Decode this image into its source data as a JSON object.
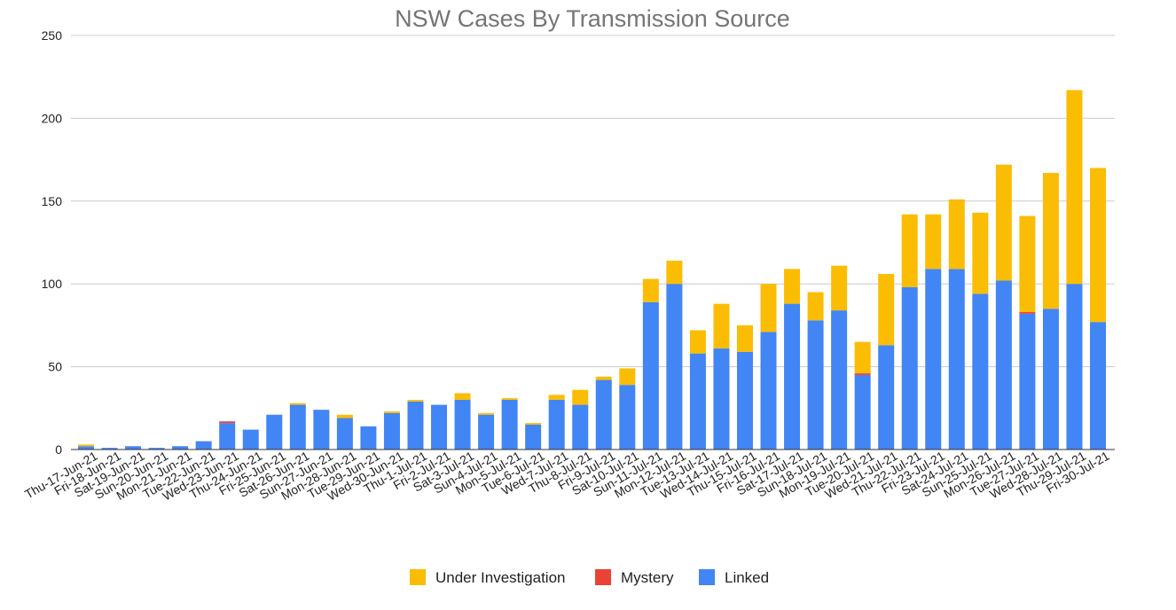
{
  "chart_data": {
    "type": "bar",
    "stacked": true,
    "title": "NSW Cases By Transmission Source",
    "xlabel": "",
    "ylabel": "",
    "ylim": [
      0,
      250
    ],
    "yticks": [
      0,
      50,
      100,
      150,
      200,
      250
    ],
    "grid": true,
    "legend_position": "bottom",
    "categories": [
      "Thu-17-Jun-21",
      "Fri-18-Jun-21",
      "Sat-19-Jun-21",
      "Sun-20-Jun-21",
      "Mon-21-Jun-21",
      "Tue-22-Jun-21",
      "Wed-23-Jun-21",
      "Thu-24-Jun-21",
      "Fri-25-Jun-21",
      "Sat-26-Jun-21",
      "Sun-27-Jun-21",
      "Mon-28-Jun-21",
      "Tue-29-Jun-21",
      "Wed-30-Jun-21",
      "Thu-1-Jul-21",
      "Fri-2-Jul-21",
      "Sat-3-Jul-21",
      "Sun-4-Jul-21",
      "Mon-5-Jul-21",
      "Tue-6-Jul-21",
      "Wed-7-Jul-21",
      "Thu-8-Jul-21",
      "Fri-9-Jul-21",
      "Sat-10-Jul-21",
      "Sun-11-Jul-21",
      "Mon-12-Jul-21",
      "Tue-13-Jul-21",
      "Wed-14-Jul-21",
      "Thu-15-Jul-21",
      "Fri-16-Jul-21",
      "Sat-17-Jul-21",
      "Sun-18-Jul-21",
      "Mon-19-Jul-21",
      "Tue-20-Jul-21",
      "Wed-21-Jul-21",
      "Thu-22-Jul-21",
      "Fri-23-Jul-21",
      "Sat-24-Jul-21",
      "Sun-25-Jul-21",
      "Mon-26-Jul-21",
      "Tue-27-Jul-21",
      "Wed-28-Jul-21",
      "Thu-29-Jul-21",
      "Fri-30-Jul-21"
    ],
    "series": [
      {
        "name": "Linked",
        "color": "#4285f4",
        "values": [
          2,
          1,
          2,
          1,
          2,
          5,
          16,
          12,
          21,
          27,
          24,
          19,
          14,
          22,
          29,
          27,
          30,
          21,
          30,
          15,
          30,
          27,
          42,
          39,
          89,
          100,
          58,
          61,
          59,
          71,
          88,
          78,
          84,
          45,
          63,
          98,
          109,
          109,
          94,
          102,
          82,
          85,
          100,
          77
        ]
      },
      {
        "name": "Mystery",
        "color": "#ea4335",
        "values": [
          0,
          0,
          0,
          0,
          0,
          0,
          1,
          0,
          0,
          0,
          0,
          0,
          0,
          0,
          0,
          0,
          0,
          0,
          0,
          0,
          0,
          0,
          0,
          0,
          0,
          0,
          0,
          0,
          0,
          0,
          0,
          0,
          0,
          1,
          0,
          0,
          0,
          0,
          0,
          0,
          1,
          0,
          0,
          0
        ]
      },
      {
        "name": "Under Investigation",
        "color": "#fbbc04",
        "values": [
          1,
          0,
          0,
          0,
          0,
          0,
          0,
          0,
          0,
          1,
          0,
          2,
          0,
          1,
          1,
          0,
          4,
          1,
          1,
          1,
          3,
          9,
          2,
          10,
          14,
          14,
          14,
          27,
          16,
          29,
          21,
          17,
          27,
          19,
          43,
          44,
          33,
          42,
          49,
          70,
          58,
          82,
          117,
          93
        ]
      }
    ],
    "legend_order": [
      "Under Investigation",
      "Mystery",
      "Linked"
    ]
  }
}
